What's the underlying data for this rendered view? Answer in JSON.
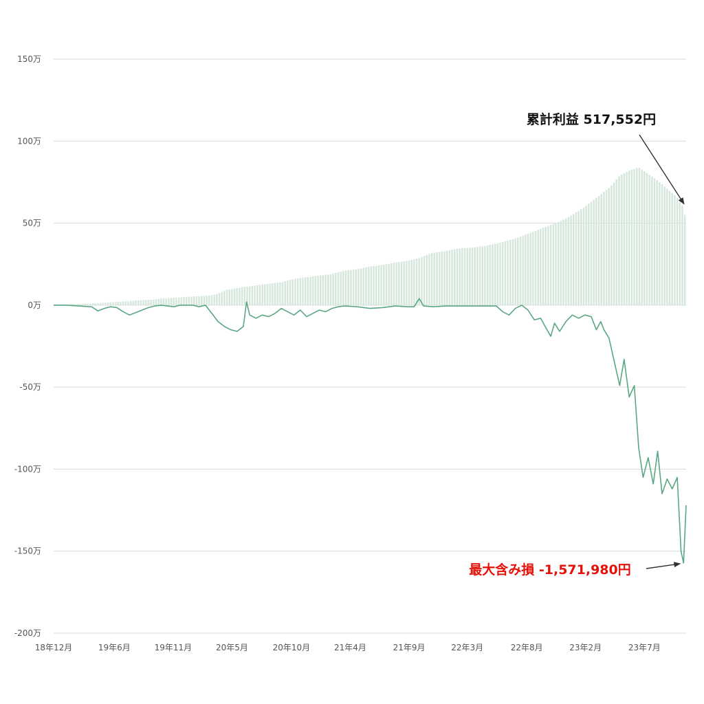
{
  "chart_data": {
    "type": "bar",
    "title": "",
    "xlabel": "",
    "ylabel": "",
    "ylim": [
      -2000000,
      1500000
    ],
    "yticks": [
      {
        "value": 1500000,
        "label": "150万"
      },
      {
        "value": 1000000,
        "label": "100万"
      },
      {
        "value": 500000,
        "label": "50万"
      },
      {
        "value": 0,
        "label": "0万"
      },
      {
        "value": -500000,
        "label": "-50万"
      },
      {
        "value": -1000000,
        "label": "-100万"
      },
      {
        "value": -1500000,
        "label": "-150万"
      },
      {
        "value": -2000000,
        "label": "-200万"
      }
    ],
    "xlim": [
      0,
      100
    ],
    "xticks": [
      {
        "value": 0,
        "label": "18年12月"
      },
      {
        "value": 9.6,
        "label": "19年6月"
      },
      {
        "value": 18.9,
        "label": "19年11月"
      },
      {
        "value": 28.2,
        "label": "20年5月"
      },
      {
        "value": 37.6,
        "label": "20年10月"
      },
      {
        "value": 46.9,
        "label": "21年4月"
      },
      {
        "value": 56.2,
        "label": "21年9月"
      },
      {
        "value": 65.4,
        "label": "22年3月"
      },
      {
        "value": 74.8,
        "label": "22年8月"
      },
      {
        "value": 84.1,
        "label": "23年2月"
      },
      {
        "value": 93.4,
        "label": "23年7月"
      }
    ],
    "grid": true,
    "series": [
      {
        "name": "",
        "kind": "bar",
        "color": "#d5e6dc",
        "points": [
          [
            0,
            5000
          ],
          [
            2,
            5000
          ],
          [
            4,
            8000
          ],
          [
            6,
            10000
          ],
          [
            8,
            15000
          ],
          [
            10,
            20000
          ],
          [
            12,
            25000
          ],
          [
            14,
            30000
          ],
          [
            16,
            35000
          ],
          [
            17,
            40000
          ],
          [
            19,
            45000
          ],
          [
            21,
            50000
          ],
          [
            23,
            55000
          ],
          [
            25,
            60000
          ],
          [
            26,
            70000
          ],
          [
            27.5,
            95000
          ],
          [
            30,
            110000
          ],
          [
            32,
            120000
          ],
          [
            34,
            130000
          ],
          [
            36,
            140000
          ],
          [
            38,
            160000
          ],
          [
            40,
            170000
          ],
          [
            42,
            180000
          ],
          [
            44,
            190000
          ],
          [
            46,
            210000
          ],
          [
            48,
            220000
          ],
          [
            50,
            235000
          ],
          [
            52,
            245000
          ],
          [
            54,
            260000
          ],
          [
            56,
            270000
          ],
          [
            58,
            290000
          ],
          [
            60,
            320000
          ],
          [
            62,
            330000
          ],
          [
            64,
            345000
          ],
          [
            66,
            350000
          ],
          [
            68,
            360000
          ],
          [
            70,
            375000
          ],
          [
            72,
            395000
          ],
          [
            74,
            420000
          ],
          [
            76,
            450000
          ],
          [
            78,
            480000
          ],
          [
            80,
            510000
          ],
          [
            82,
            550000
          ],
          [
            84,
            600000
          ],
          [
            86,
            660000
          ],
          [
            88,
            720000
          ],
          [
            89.5,
            790000
          ],
          [
            91,
            820000
          ],
          [
            92.5,
            840000
          ],
          [
            94,
            800000
          ],
          [
            95.5,
            760000
          ],
          [
            97,
            710000
          ],
          [
            98.5,
            660000
          ],
          [
            99.5,
            600000
          ],
          [
            100,
            517552
          ]
        ]
      },
      {
        "name": "",
        "kind": "line",
        "color": "#5aa683",
        "points": [
          [
            0,
            0
          ],
          [
            2,
            0
          ],
          [
            4,
            -5000
          ],
          [
            6,
            -10000
          ],
          [
            7,
            -35000
          ],
          [
            8,
            -20000
          ],
          [
            9,
            -10000
          ],
          [
            10,
            -15000
          ],
          [
            11,
            -40000
          ],
          [
            12,
            -60000
          ],
          [
            13,
            -45000
          ],
          [
            14,
            -30000
          ],
          [
            15,
            -15000
          ],
          [
            16,
            -5000
          ],
          [
            17,
            0
          ],
          [
            19,
            -10000
          ],
          [
            20,
            0
          ],
          [
            22,
            0
          ],
          [
            23,
            -10000
          ],
          [
            24,
            0
          ],
          [
            25,
            -50000
          ],
          [
            26,
            -100000
          ],
          [
            27,
            -130000
          ],
          [
            28,
            -150000
          ],
          [
            29,
            -160000
          ],
          [
            30,
            -130000
          ],
          [
            30.5,
            20000
          ],
          [
            31,
            -60000
          ],
          [
            32,
            -80000
          ],
          [
            33,
            -60000
          ],
          [
            34,
            -70000
          ],
          [
            35,
            -50000
          ],
          [
            36,
            -20000
          ],
          [
            37,
            -40000
          ],
          [
            38,
            -60000
          ],
          [
            39,
            -30000
          ],
          [
            40,
            -70000
          ],
          [
            41,
            -50000
          ],
          [
            42,
            -30000
          ],
          [
            43,
            -40000
          ],
          [
            44,
            -20000
          ],
          [
            45,
            -10000
          ],
          [
            46,
            -5000
          ],
          [
            48,
            -10000
          ],
          [
            50,
            -20000
          ],
          [
            52,
            -15000
          ],
          [
            54,
            -5000
          ],
          [
            56,
            -10000
          ],
          [
            57,
            -10000
          ],
          [
            57.8,
            40000
          ],
          [
            58.5,
            -5000
          ],
          [
            60,
            -10000
          ],
          [
            62,
            -5000
          ],
          [
            64,
            -5000
          ],
          [
            66,
            -5000
          ],
          [
            68,
            -5000
          ],
          [
            70,
            -5000
          ],
          [
            71,
            -40000
          ],
          [
            72,
            -60000
          ],
          [
            73,
            -20000
          ],
          [
            74,
            0
          ],
          [
            75,
            -30000
          ],
          [
            76,
            -90000
          ],
          [
            77,
            -80000
          ],
          [
            78,
            -150000
          ],
          [
            78.6,
            -190000
          ],
          [
            79.2,
            -110000
          ],
          [
            80,
            -160000
          ],
          [
            81,
            -100000
          ],
          [
            82,
            -60000
          ],
          [
            83,
            -80000
          ],
          [
            84,
            -60000
          ],
          [
            85,
            -70000
          ],
          [
            85.8,
            -150000
          ],
          [
            86.5,
            -100000
          ],
          [
            87,
            -150000
          ],
          [
            87.8,
            -200000
          ],
          [
            88.5,
            -320000
          ],
          [
            89.5,
            -490000
          ],
          [
            90.2,
            -330000
          ],
          [
            91,
            -560000
          ],
          [
            91.8,
            -490000
          ],
          [
            92.5,
            -870000
          ],
          [
            93.2,
            -1050000
          ],
          [
            94,
            -930000
          ],
          [
            94.8,
            -1090000
          ],
          [
            95.5,
            -890000
          ],
          [
            96.2,
            -1150000
          ],
          [
            97,
            -1060000
          ],
          [
            97.8,
            -1120000
          ],
          [
            98.6,
            -1050000
          ],
          [
            99.2,
            -1500000
          ],
          [
            99.6,
            -1571980
          ],
          [
            100,
            -1220000
          ]
        ]
      }
    ],
    "annotations": [
      {
        "text": "累計利益  517,552円",
        "color": "#111111",
        "target": [
          100,
          600000
        ]
      },
      {
        "text": "最大含み損 -1,571,980円",
        "color": "#e3120b",
        "target": [
          99.6,
          -1571980
        ]
      }
    ]
  }
}
